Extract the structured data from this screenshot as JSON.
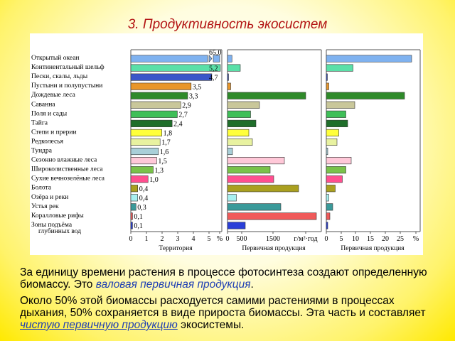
{
  "slide": {
    "title": "3. Продуктивность экосистем"
  },
  "text": {
    "p1_a": "За единицу времени растения в процессе фотосинтеза создают определенную биомассу. Это ",
    "p1_b": "валовая первичная продукция",
    "p1_c": ".",
    "p2_a": "Около 50% этой биомассы расходуется самими растениями в процессах дыхания, 50% сохраняется в виде прироста биомассы. Эта часть и составляет ",
    "p2_b": "чистую первичную продукцию",
    "p2_c": " экосистемы."
  },
  "chart_data": {
    "type": "bar",
    "categories": [
      "Открытый океан",
      "Континентальный шельф",
      "Пески, скалы, льды",
      "Пустыни и полупустыни",
      "Дождевые леса",
      "Саванна",
      "Поля и сады",
      "Тайга",
      "Степи и прерии",
      "Редколесья",
      "Тундра",
      "Сезонно влажные леса",
      "Широколиственные леса",
      "Сухие вечнозелёные леса",
      "Болота",
      "Озёра и реки",
      "Устья рек",
      "Коралловые рифы",
      "Зоны подъёма глубинных вод"
    ],
    "category_colors": [
      "#7fb2f0",
      "#5ae0a8",
      "#3a56c9",
      "#e8962a",
      "#2f8a2a",
      "#c9c79a",
      "#3fbf58",
      "#1f6e2a",
      "#ffff3a",
      "#e8f2a0",
      "#a9cfd8",
      "#ffc8d8",
      "#7ac24a",
      "#ff4f8f",
      "#aaa01f",
      "#a8f0f0",
      "#3a9a9a",
      "#f05a5a",
      "#2a3fd8"
    ],
    "panels": [
      {
        "xlabel": "Территория",
        "tick_labels": [
          "0",
          "1",
          "2",
          "3",
          "4",
          "5",
          "%"
        ],
        "xlim": [
          0,
          5.2
        ],
        "values": [
          65.0,
          5.2,
          4.7,
          3.5,
          3.3,
          2.9,
          2.7,
          2.4,
          1.8,
          1.7,
          1.6,
          1.5,
          1.3,
          1.0,
          0.4,
          0.4,
          0.3,
          0.1,
          0.1
        ],
        "value_labels": [
          "65,0",
          "5,2",
          "4,7",
          "3,5",
          "3,3",
          "2,9",
          "2,7",
          "2,4",
          "1,8",
          "1,7",
          "1,6",
          "1,5",
          "1,3",
          "1,0",
          "0,4",
          "0,4",
          "0,3",
          "0,1",
          "0,1"
        ]
      },
      {
        "xlabel": "Первичная продукция",
        "tick_labels": [
          "0",
          "500",
          "1500",
          "г/м²·год"
        ],
        "xlim": [
          0,
          2600
        ],
        "values": [
          125,
          360,
          3,
          90,
          2200,
          900,
          650,
          800,
          600,
          700,
          140,
          1600,
          1200,
          1300,
          2000,
          250,
          1500,
          2500,
          500
        ]
      },
      {
        "xlabel": "Первичная продукция",
        "tick_labels": [
          "0",
          "5",
          "10",
          "15",
          "20",
          "25",
          "%"
        ],
        "xlim": [
          0,
          26
        ],
        "values": [
          24,
          7.5,
          0.1,
          0.7,
          22,
          8,
          5.5,
          6,
          3.5,
          3,
          0.4,
          7,
          5.5,
          4.5,
          2.5,
          0.7,
          1.8,
          1,
          0.4
        ]
      }
    ]
  }
}
